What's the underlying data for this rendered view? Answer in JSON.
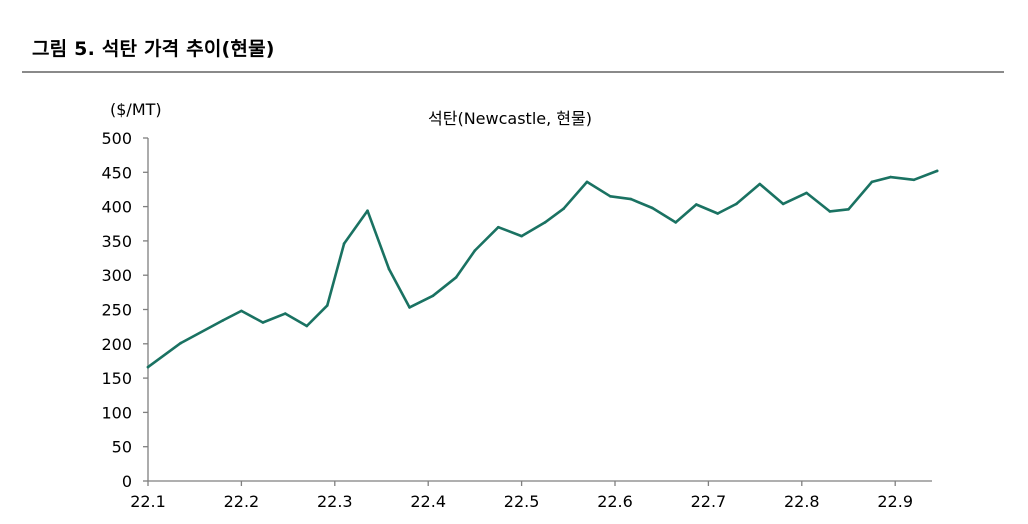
{
  "header": {
    "title": "그림 5. 석탄 가격 추이(현물)"
  },
  "chart_data": {
    "type": "line",
    "title": "석탄(Newcastle, 현물)",
    "ylabel": "($/MT)",
    "xlabel": "",
    "ylim": [
      0,
      500
    ],
    "y_ticks": [
      "0",
      "50",
      "100",
      "150",
      "200",
      "250",
      "300",
      "350",
      "400",
      "450",
      "500"
    ],
    "x_tick_labels": [
      "22.1",
      "22.2",
      "22.3",
      "22.4",
      "22.5",
      "22.6",
      "22.7",
      "22.8",
      "22.9"
    ],
    "grid": false,
    "line_color": "#1a7262",
    "series": [
      {
        "name": "석탄(Newcastle, 현물)",
        "x": [
          1.0,
          1.35,
          1.8,
          2.0,
          2.23,
          2.47,
          2.7,
          2.92,
          3.1,
          3.35,
          3.58,
          3.8,
          4.05,
          4.3,
          4.5,
          4.75,
          5.0,
          5.25,
          5.45,
          5.7,
          5.95,
          6.17,
          6.4,
          6.65,
          6.87,
          7.1,
          7.3,
          7.55,
          7.8,
          8.05,
          8.3,
          8.5,
          8.75,
          8.95,
          9.2,
          9.45
        ],
        "values": [
          166,
          201,
          234,
          248,
          231,
          244,
          226,
          256,
          346,
          394,
          309,
          253,
          270,
          297,
          336,
          370,
          357,
          377,
          397,
          436,
          415,
          411,
          398,
          377,
          403,
          390,
          404,
          433,
          404,
          420,
          393,
          396,
          436,
          443,
          439,
          452
        ]
      }
    ]
  }
}
